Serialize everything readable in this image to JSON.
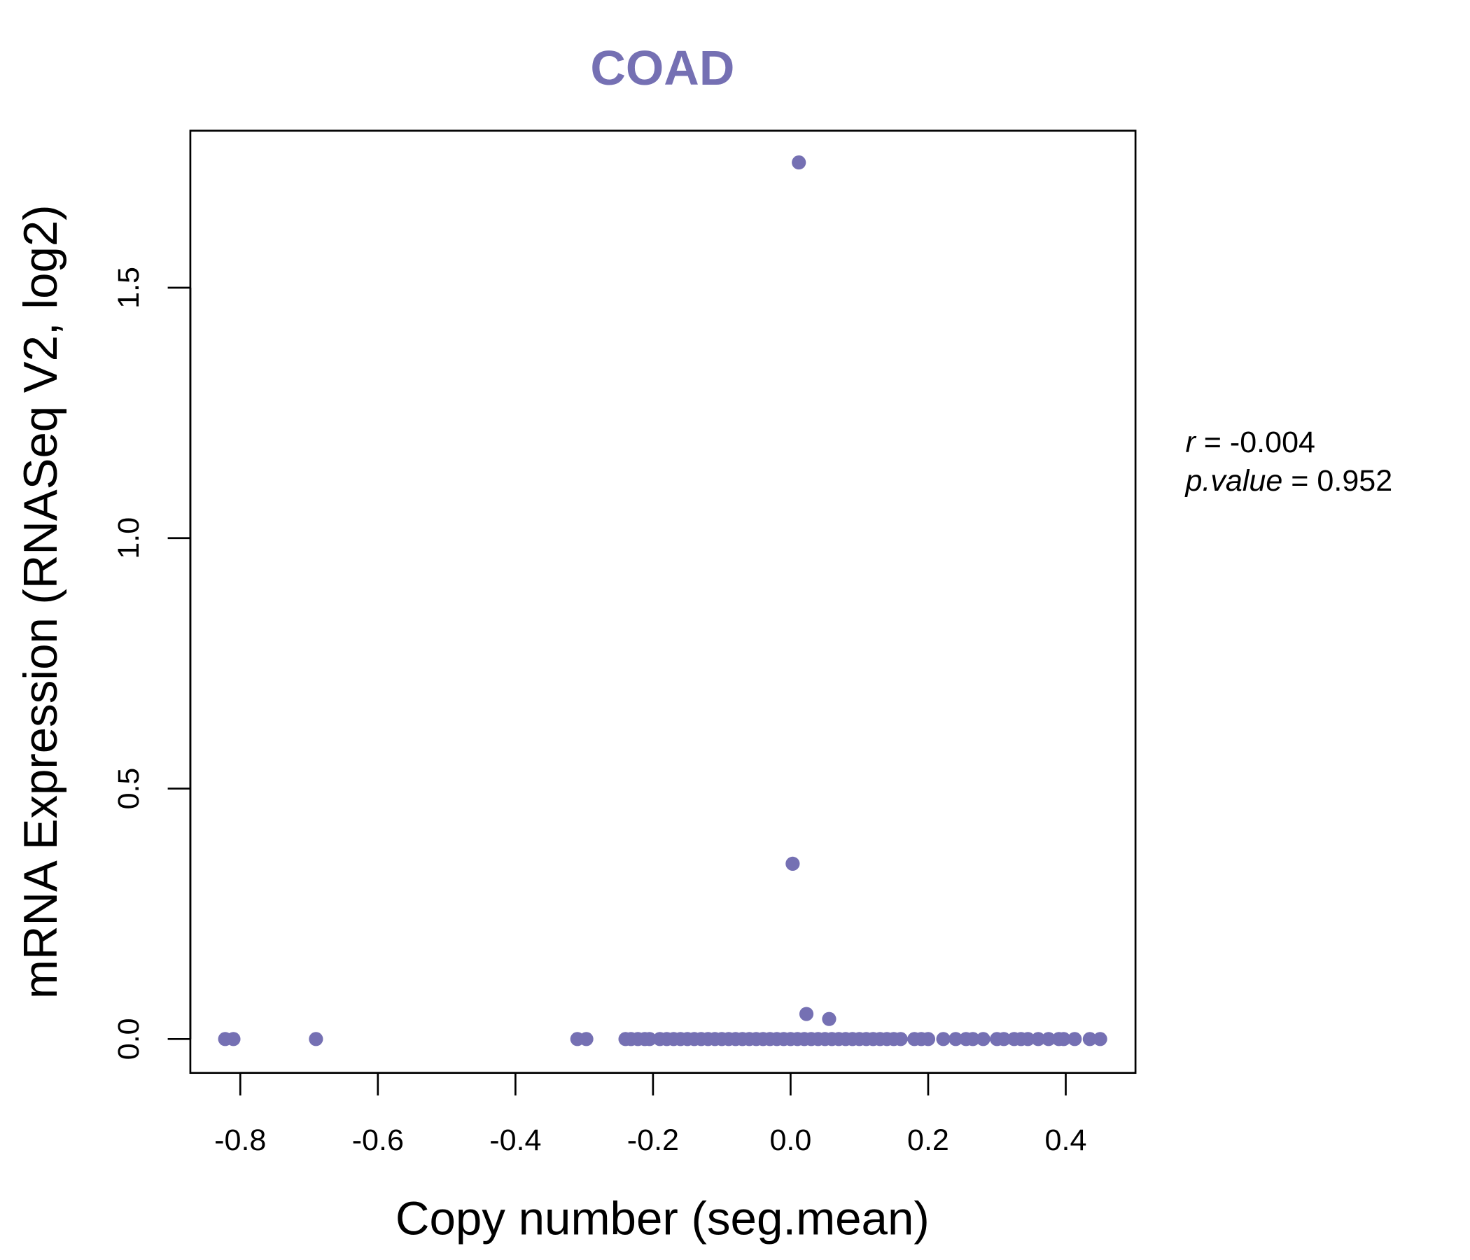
{
  "chart_data": {
    "type": "scatter",
    "title": "COAD",
    "xlabel": "Copy number (seg.mean)",
    "ylabel": "mRNA Expression (RNASeq V2, log2)",
    "xlim": [
      -0.875,
      0.5
    ],
    "ylim": [
      -0.1,
      1.81
    ],
    "x_ticks": [
      -0.8,
      -0.6,
      -0.4,
      -0.2,
      0.0,
      0.2,
      0.4
    ],
    "x_tick_labels": [
      "-0.8",
      "-0.6",
      "-0.4",
      "-0.2",
      "0.0",
      "0.2",
      "0.4"
    ],
    "y_ticks": [
      0.0,
      0.5,
      1.0,
      1.5
    ],
    "y_tick_labels": [
      "0.0",
      "0.5",
      "1.0",
      "1.5"
    ],
    "grid": false,
    "point_color": "#7570B3",
    "title_color": "#7570B3",
    "stats": {
      "r_label": "r",
      "r_value": "-0.004",
      "p_label": "p.value",
      "p_value": "0.952"
    },
    "points": [
      {
        "x": 0.012,
        "y": 1.75
      },
      {
        "x": 0.003,
        "y": 0.35
      },
      {
        "x": 0.023,
        "y": 0.05
      },
      {
        "x": 0.056,
        "y": 0.04
      },
      {
        "x": -0.822,
        "y": 0
      },
      {
        "x": -0.81,
        "y": 0
      },
      {
        "x": -0.69,
        "y": 0
      },
      {
        "x": -0.31,
        "y": 0
      },
      {
        "x": -0.297,
        "y": 0
      },
      {
        "x": -0.24,
        "y": 0
      },
      {
        "x": -0.232,
        "y": 0
      },
      {
        "x": -0.222,
        "y": 0
      },
      {
        "x": -0.212,
        "y": 0
      },
      {
        "x": -0.205,
        "y": 0
      },
      {
        "x": -0.19,
        "y": 0
      },
      {
        "x": -0.18,
        "y": 0
      },
      {
        "x": -0.17,
        "y": 0
      },
      {
        "x": -0.16,
        "y": 0
      },
      {
        "x": -0.15,
        "y": 0
      },
      {
        "x": -0.14,
        "y": 0
      },
      {
        "x": -0.13,
        "y": 0
      },
      {
        "x": -0.12,
        "y": 0
      },
      {
        "x": -0.11,
        "y": 0
      },
      {
        "x": -0.1,
        "y": 0
      },
      {
        "x": -0.09,
        "y": 0
      },
      {
        "x": -0.08,
        "y": 0
      },
      {
        "x": -0.07,
        "y": 0
      },
      {
        "x": -0.06,
        "y": 0
      },
      {
        "x": -0.05,
        "y": 0
      },
      {
        "x": -0.04,
        "y": 0
      },
      {
        "x": -0.03,
        "y": 0
      },
      {
        "x": -0.02,
        "y": 0
      },
      {
        "x": -0.01,
        "y": 0
      },
      {
        "x": 0.0,
        "y": 0
      },
      {
        "x": 0.01,
        "y": 0
      },
      {
        "x": 0.02,
        "y": 0
      },
      {
        "x": 0.03,
        "y": 0
      },
      {
        "x": 0.04,
        "y": 0
      },
      {
        "x": 0.05,
        "y": 0
      },
      {
        "x": 0.06,
        "y": 0
      },
      {
        "x": 0.07,
        "y": 0
      },
      {
        "x": 0.08,
        "y": 0
      },
      {
        "x": 0.09,
        "y": 0
      },
      {
        "x": 0.1,
        "y": 0
      },
      {
        "x": 0.11,
        "y": 0
      },
      {
        "x": 0.12,
        "y": 0
      },
      {
        "x": 0.13,
        "y": 0
      },
      {
        "x": 0.14,
        "y": 0
      },
      {
        "x": 0.15,
        "y": 0
      },
      {
        "x": 0.16,
        "y": 0
      },
      {
        "x": 0.18,
        "y": 0
      },
      {
        "x": 0.19,
        "y": 0
      },
      {
        "x": 0.2,
        "y": 0
      },
      {
        "x": 0.222,
        "y": 0
      },
      {
        "x": 0.24,
        "y": 0
      },
      {
        "x": 0.255,
        "y": 0
      },
      {
        "x": 0.265,
        "y": 0
      },
      {
        "x": 0.28,
        "y": 0
      },
      {
        "x": 0.3,
        "y": 0
      },
      {
        "x": 0.31,
        "y": 0
      },
      {
        "x": 0.325,
        "y": 0
      },
      {
        "x": 0.335,
        "y": 0
      },
      {
        "x": 0.345,
        "y": 0
      },
      {
        "x": 0.36,
        "y": 0
      },
      {
        "x": 0.375,
        "y": 0
      },
      {
        "x": 0.39,
        "y": 0
      },
      {
        "x": 0.397,
        "y": 0
      },
      {
        "x": 0.413,
        "y": 0
      },
      {
        "x": 0.435,
        "y": 0
      },
      {
        "x": 0.45,
        "y": 0
      }
    ]
  }
}
